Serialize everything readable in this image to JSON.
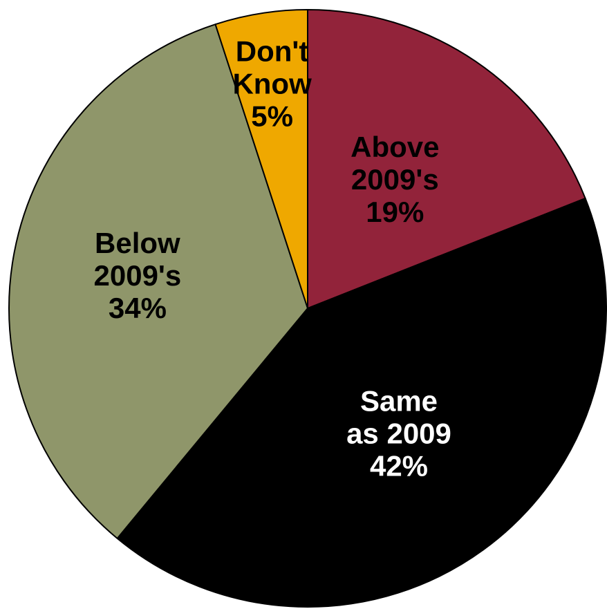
{
  "chart_data": {
    "type": "pie",
    "title": "",
    "slices": [
      {
        "name": "Above 2009's",
        "value": 19,
        "color": "#92233A",
        "label_color": "#000000",
        "label_lines": [
          "Above",
          "2009's",
          "19%"
        ]
      },
      {
        "name": "Same as 2009",
        "value": 42,
        "color": "#000000",
        "label_color": "#ffffff",
        "label_lines": [
          "Same",
          "as 2009",
          "42%"
        ]
      },
      {
        "name": "Below 2009's",
        "value": 34,
        "color": "#8F966A",
        "label_color": "#000000",
        "label_lines": [
          "Below",
          "2009's",
          "34%"
        ]
      },
      {
        "name": "Don't Know",
        "value": 5,
        "color": "#EFA800",
        "label_color": "#000000",
        "label_lines": [
          "Don't",
          "Know",
          "5%"
        ]
      }
    ],
    "start_angle": "12 o'clock",
    "direction": "clockwise",
    "legend": "none"
  }
}
